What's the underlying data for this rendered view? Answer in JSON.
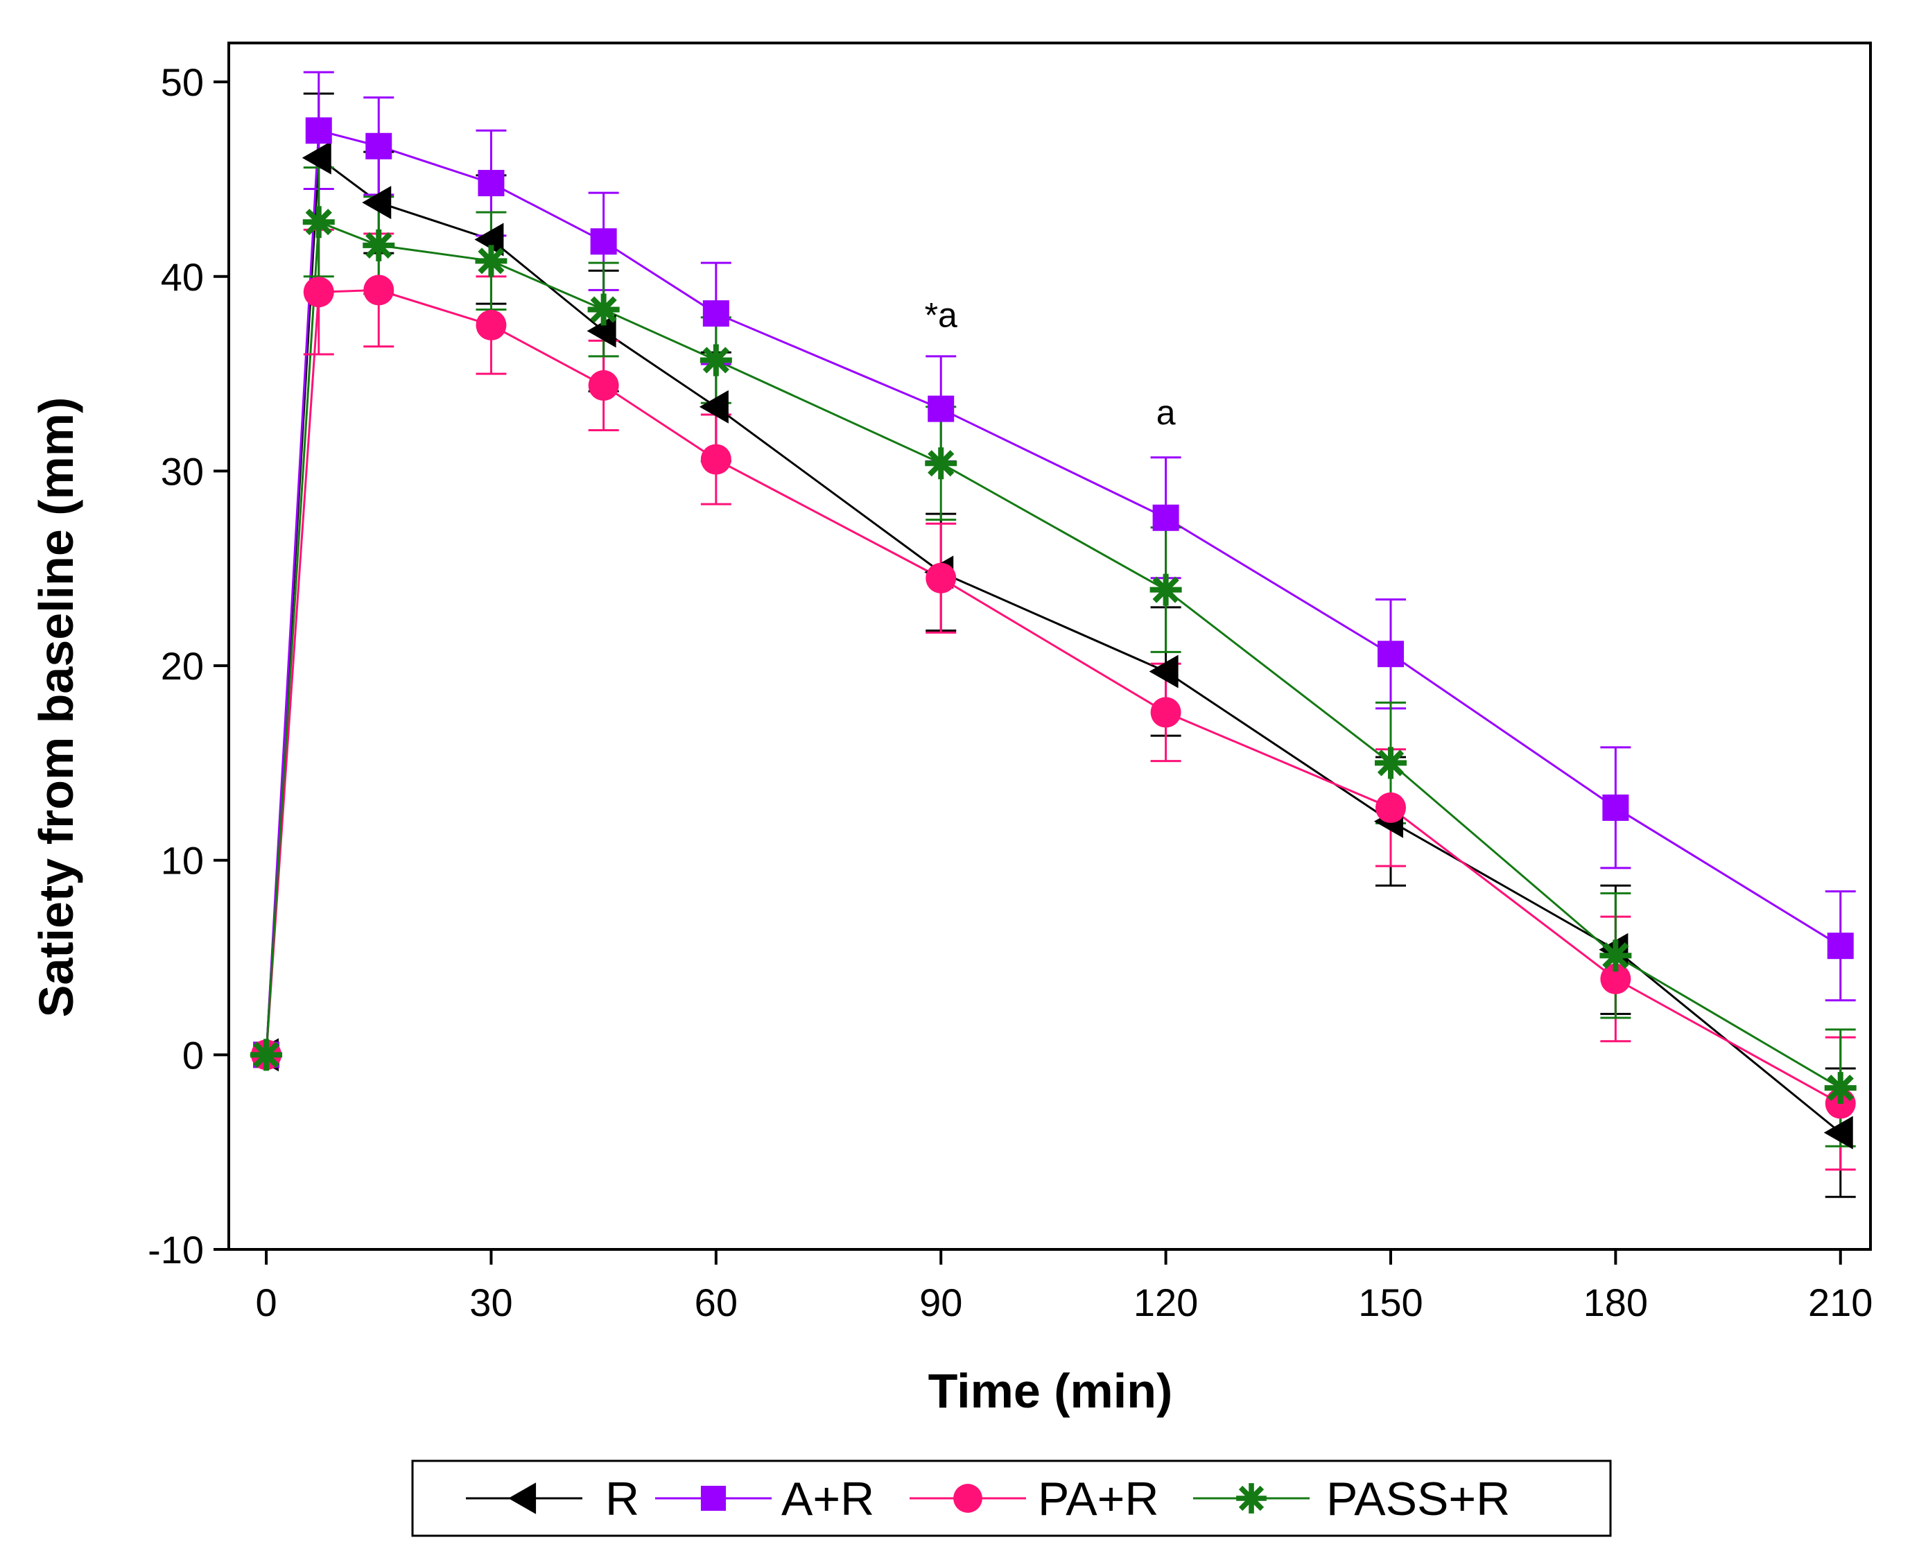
{
  "chart_data": {
    "type": "line",
    "title": "",
    "xlabel": "Time (min)",
    "ylabel": "Satiety from baseline (mm)",
    "xlim": [
      -5,
      214
    ],
    "ylim": [
      -10,
      52
    ],
    "x_ticks": [
      0,
      30,
      60,
      90,
      120,
      150,
      180,
      210
    ],
    "y_ticks": [
      -10,
      0,
      10,
      20,
      30,
      40,
      50
    ],
    "x_tick_labels": [
      "0",
      "30",
      "60",
      "90",
      "120",
      "150",
      "180",
      "210"
    ],
    "y_tick_labels": [
      "-10",
      "0",
      "10",
      "20",
      "30",
      "40",
      "50"
    ],
    "x": [
      0,
      7,
      15,
      30,
      45,
      60,
      90,
      120,
      150,
      180,
      210
    ],
    "series": [
      {
        "name": "R",
        "color": "#000000",
        "marker": "triangle-left",
        "values": [
          0,
          46.1,
          43.8,
          41.9,
          37.2,
          33.3,
          24.8,
          19.7,
          12.0,
          5.4,
          -4.0
        ],
        "errors": [
          0,
          3.3,
          2.6,
          3.3,
          3.1,
          2.8,
          3.0,
          3.3,
          3.3,
          3.3,
          3.3
        ]
      },
      {
        "name": "A+R",
        "color": "#9900FF",
        "marker": "square",
        "values": [
          0,
          47.5,
          46.7,
          44.8,
          41.8,
          38.1,
          33.2,
          27.6,
          20.6,
          12.7,
          5.6
        ],
        "errors": [
          0,
          3.0,
          2.5,
          2.7,
          2.5,
          2.6,
          2.7,
          3.1,
          2.8,
          3.1,
          2.8
        ]
      },
      {
        "name": "PA+R",
        "color": "#FF1177",
        "marker": "circle",
        "values": [
          0,
          39.2,
          39.3,
          37.5,
          34.4,
          30.6,
          24.5,
          17.6,
          12.7,
          3.9,
          -2.5
        ],
        "errors": [
          0,
          3.2,
          2.9,
          2.5,
          2.3,
          2.3,
          2.8,
          2.5,
          3.0,
          3.2,
          3.4
        ]
      },
      {
        "name": "PASS+R",
        "color": "#147A14",
        "marker": "asterisk",
        "values": [
          0,
          42.8,
          41.6,
          40.8,
          38.3,
          35.7,
          30.4,
          23.9,
          15.0,
          5.1,
          -1.7
        ],
        "errors": [
          0,
          2.8,
          2.5,
          2.5,
          2.4,
          2.2,
          2.9,
          3.2,
          3.1,
          3.2,
          3.0
        ]
      }
    ],
    "annotations": [
      {
        "x": 90,
        "y": 37.4,
        "text": "*a"
      },
      {
        "x": 120,
        "y": 32.4,
        "text": "a"
      }
    ],
    "legend_position": "bottom",
    "grid": false
  }
}
